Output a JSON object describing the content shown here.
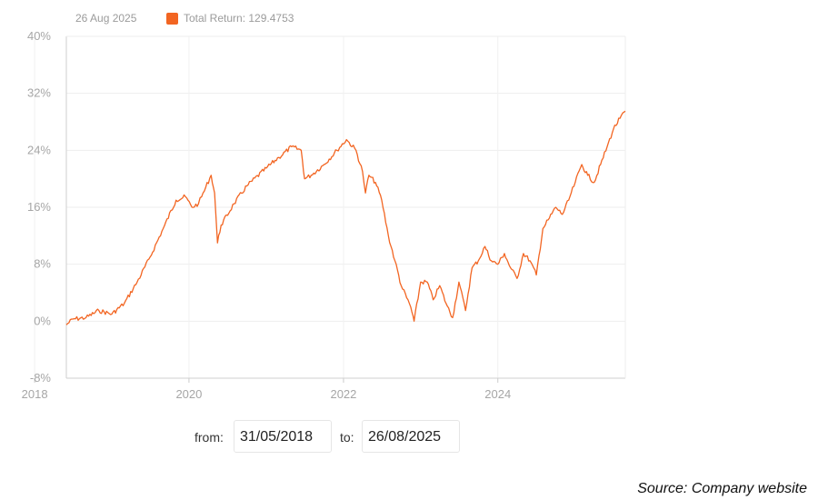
{
  "header": {
    "date": "26 Aug 2025"
  },
  "legend": {
    "label": "Total Return: 129.4753",
    "color": "#f26522"
  },
  "range": {
    "from_label": "from:",
    "from_value": "31/05/2018",
    "to_label": "to:",
    "to_value": "26/08/2025"
  },
  "footer": {
    "source": "Source: Company website"
  },
  "chart_data": {
    "type": "line",
    "title": "",
    "xlabel": "",
    "ylabel": "",
    "ylim": [
      -8,
      40
    ],
    "yticks": [
      40,
      32,
      24,
      16,
      8,
      0,
      -8
    ],
    "ytick_labels": [
      "40%",
      "32%",
      "24%",
      "16%",
      "8%",
      "0%",
      "-8%"
    ],
    "xticks": [
      2018,
      2020,
      2022,
      2024
    ],
    "xtick_labels": [
      "2018",
      "2020",
      "2022",
      "2024"
    ],
    "xlim": [
      "2018-05-31",
      "2025-08-26"
    ],
    "grid": true,
    "series": [
      {
        "name": "Total Return: 129.4753",
        "color": "#f26522",
        "points": [
          [
            "2018-05-31",
            -0.5
          ],
          [
            "2018-07-01",
            0.3
          ],
          [
            "2018-09-01",
            0.5
          ],
          [
            "2018-11-01",
            1.5
          ],
          [
            "2019-01-01",
            1.0
          ],
          [
            "2019-03-01",
            2.5
          ],
          [
            "2019-05-01",
            5.5
          ],
          [
            "2019-07-01",
            9.0
          ],
          [
            "2019-09-01",
            13.0
          ],
          [
            "2019-11-01",
            17.0
          ],
          [
            "2019-12-15",
            17.5
          ],
          [
            "2020-01-15",
            16.0
          ],
          [
            "2020-02-15",
            16.5
          ],
          [
            "2020-03-01",
            17.5
          ],
          [
            "2020-04-15",
            20.5
          ],
          [
            "2020-05-01",
            18.0
          ],
          [
            "2020-05-15",
            11.0
          ],
          [
            "2020-06-01",
            13.5
          ],
          [
            "2020-08-01",
            16.5
          ],
          [
            "2020-10-01",
            19.0
          ],
          [
            "2021-01-01",
            21.5
          ],
          [
            "2021-03-01",
            23.0
          ],
          [
            "2021-05-01",
            24.5
          ],
          [
            "2021-06-15",
            24.0
          ],
          [
            "2021-07-01",
            20.0
          ],
          [
            "2021-08-01",
            20.5
          ],
          [
            "2021-10-01",
            22.0
          ],
          [
            "2021-12-01",
            24.0
          ],
          [
            "2022-01-15",
            25.5
          ],
          [
            "2022-03-01",
            24.0
          ],
          [
            "2022-04-01",
            21.0
          ],
          [
            "2022-04-15",
            18.0
          ],
          [
            "2022-05-01",
            20.5
          ],
          [
            "2022-06-01",
            19.5
          ],
          [
            "2022-07-01",
            17.0
          ],
          [
            "2022-08-01",
            12.0
          ],
          [
            "2022-09-01",
            8.5
          ],
          [
            "2022-10-01",
            5.0
          ],
          [
            "2022-11-15",
            2.0
          ],
          [
            "2022-12-01",
            0.0
          ],
          [
            "2023-01-01",
            5.5
          ],
          [
            "2023-02-01",
            5.5
          ],
          [
            "2023-03-01",
            3.0
          ],
          [
            "2023-04-01",
            5.0
          ],
          [
            "2023-05-01",
            2.5
          ],
          [
            "2023-06-01",
            0.5
          ],
          [
            "2023-07-01",
            5.5
          ],
          [
            "2023-08-01",
            1.5
          ],
          [
            "2023-09-01",
            7.5
          ],
          [
            "2023-10-01",
            8.5
          ],
          [
            "2023-11-01",
            10.5
          ],
          [
            "2023-12-01",
            8.5
          ],
          [
            "2024-01-01",
            8.0
          ],
          [
            "2024-02-01",
            9.5
          ],
          [
            "2024-03-01",
            7.5
          ],
          [
            "2024-04-01",
            6.0
          ],
          [
            "2024-05-01",
            9.5
          ],
          [
            "2024-06-01",
            8.5
          ],
          [
            "2024-07-01",
            6.5
          ],
          [
            "2024-08-01",
            13.0
          ],
          [
            "2024-09-01",
            14.5
          ],
          [
            "2024-10-01",
            16.0
          ],
          [
            "2024-11-01",
            15.0
          ],
          [
            "2024-12-01",
            17.0
          ],
          [
            "2025-01-01",
            19.5
          ],
          [
            "2025-02-01",
            22.0
          ],
          [
            "2025-03-01",
            20.5
          ],
          [
            "2025-04-01",
            19.5
          ],
          [
            "2025-05-01",
            22.0
          ],
          [
            "2025-06-01",
            24.5
          ],
          [
            "2025-07-01",
            27.0
          ],
          [
            "2025-08-01",
            28.5
          ],
          [
            "2025-08-26",
            29.5
          ]
        ]
      }
    ]
  }
}
